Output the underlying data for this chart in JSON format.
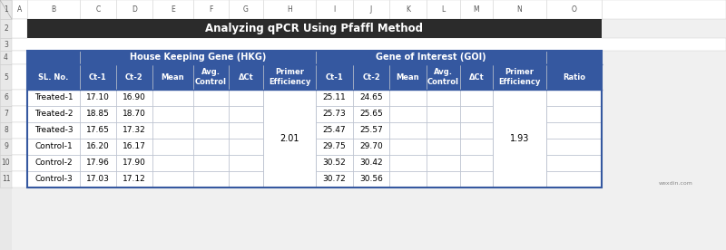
{
  "title": "Analyzing qPCR Using Pfaffl Method",
  "title_bg": "#2b2b2b",
  "title_color": "#ffffff",
  "header_blue": "#3558a0",
  "header_text_color": "#ffffff",
  "cell_bg": "#ffffff",
  "cell_border": "#b0b8c8",
  "outer_border": "#3558a0",
  "excel_bg": "#f0f0f0",
  "excel_header_bg": "#e8e8e8",
  "excel_text": "#555555",
  "col_headers": [
    "SL. No.",
    "Ct-1",
    "Ct-2",
    "Mean",
    "Avg.\nControl",
    "ΔCt",
    "Primer\nEfficiency",
    "Ct-1",
    "Ct-2",
    "Mean",
    "Avg.\nControl",
    "ΔCt",
    "Primer\nEfficiency",
    "Ratio"
  ],
  "group_headers": [
    "House Keeping Gene (HKG)",
    "Gene of Interest (GOI)"
  ],
  "rows": [
    [
      "Treated-1",
      "17.10",
      "16.90",
      "",
      "",
      "",
      "",
      "25.11",
      "24.65",
      "",
      "",
      "",
      "",
      ""
    ],
    [
      "Treated-2",
      "18.85",
      "18.70",
      "",
      "",
      "",
      "",
      "25.73",
      "25.65",
      "",
      "",
      "",
      "",
      ""
    ],
    [
      "Treated-3",
      "17.65",
      "17.32",
      "",
      "",
      "",
      "",
      "25.47",
      "25.57",
      "",
      "",
      "",
      "",
      ""
    ],
    [
      "Control-1",
      "16.20",
      "16.17",
      "",
      "",
      "",
      "",
      "29.75",
      "29.70",
      "",
      "",
      "",
      "",
      ""
    ],
    [
      "Control-2",
      "17.96",
      "17.90",
      "",
      "",
      "",
      "",
      "30.52",
      "30.42",
      "",
      "",
      "",
      "",
      ""
    ],
    [
      "Control-3",
      "17.03",
      "17.12",
      "",
      "",
      "",
      "",
      "30.72",
      "30.56",
      "",
      "",
      "",
      "",
      ""
    ]
  ],
  "merged_primer_eff_hkg": "2.01",
  "merged_primer_eff_goi": "1.93",
  "excel_col_labels": [
    "A",
    "B",
    "C",
    "D",
    "E",
    "F",
    "G",
    "H",
    "I",
    "J",
    "K",
    "L",
    "M",
    "N",
    "O"
  ],
  "excel_row_labels": [
    "1",
    "2",
    "3",
    "4",
    "5",
    "6",
    "7",
    "8",
    "9",
    "10",
    "11"
  ],
  "watermark": "wexdin.com",
  "row_bounds": [
    276,
    255,
    234,
    220,
    205,
    177,
    159,
    141,
    123,
    105,
    87,
    69
  ],
  "col_bounds": [
    0,
    13,
    30,
    88,
    128,
    168,
    213,
    252,
    290,
    348,
    389,
    429,
    470,
    507,
    543,
    602,
    663,
    800
  ]
}
